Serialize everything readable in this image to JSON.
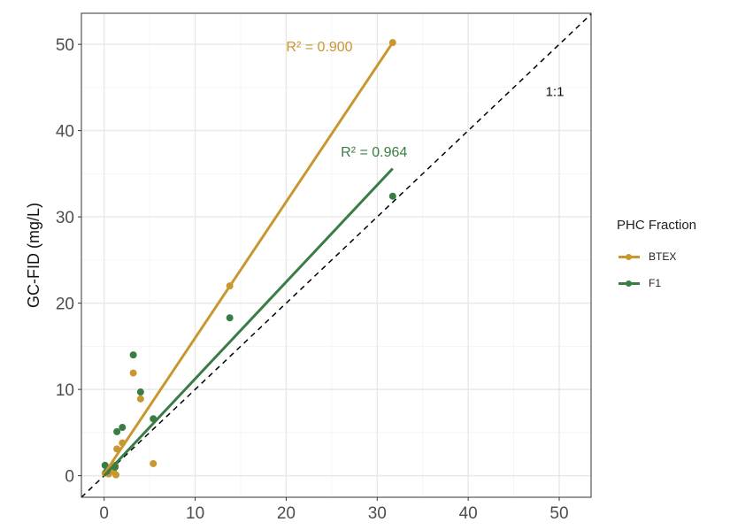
{
  "chart_data": {
    "type": "scatter",
    "title": "",
    "xlabel": "",
    "ylabel": "GC-FID (mg/L)",
    "xlim": [
      -2.5,
      53.5
    ],
    "ylim": [
      -2.5,
      53.6
    ],
    "xticks": [
      0,
      10,
      20,
      30,
      40,
      50
    ],
    "yticks": [
      0,
      10,
      20,
      30,
      40,
      50
    ],
    "grid": true,
    "legend": {
      "title": "PHC Fraction",
      "position": "right"
    },
    "reference_line": {
      "label": "1:1",
      "slope": 1,
      "intercept": 0
    },
    "series": [
      {
        "name": "BTEX",
        "color": "#C9972F",
        "r2_label": "R² = 0.900",
        "fit": {
          "x": [
            0,
            31.7
          ],
          "y": [
            0.2,
            50.2
          ]
        },
        "points": [
          [
            31.7,
            50.2
          ],
          [
            13.8,
            22.0
          ],
          [
            3.2,
            11.9
          ],
          [
            4.0,
            8.9
          ],
          [
            2.0,
            3.8
          ],
          [
            1.4,
            3.1
          ],
          [
            5.4,
            1.4
          ],
          [
            0.1,
            0.3
          ],
          [
            0.5,
            0.2
          ],
          [
            1.0,
            0.5
          ],
          [
            1.3,
            0.1
          ],
          [
            0.8,
            0.8
          ],
          [
            1.2,
            1.2
          ]
        ]
      },
      {
        "name": "F1",
        "color": "#3A7D44",
        "r2_label": "R² = 0.964",
        "fit": {
          "x": [
            0,
            31.7
          ],
          "y": [
            0.0,
            35.6
          ]
        },
        "points": [
          [
            31.7,
            32.4
          ],
          [
            13.8,
            18.3
          ],
          [
            3.2,
            14.0
          ],
          [
            4.0,
            9.7
          ],
          [
            2.0,
            5.6
          ],
          [
            1.4,
            5.1
          ],
          [
            5.4,
            6.6
          ],
          [
            0.1,
            1.2
          ],
          [
            0.3,
            0.5
          ],
          [
            1.2,
            1.0
          ]
        ]
      }
    ]
  }
}
